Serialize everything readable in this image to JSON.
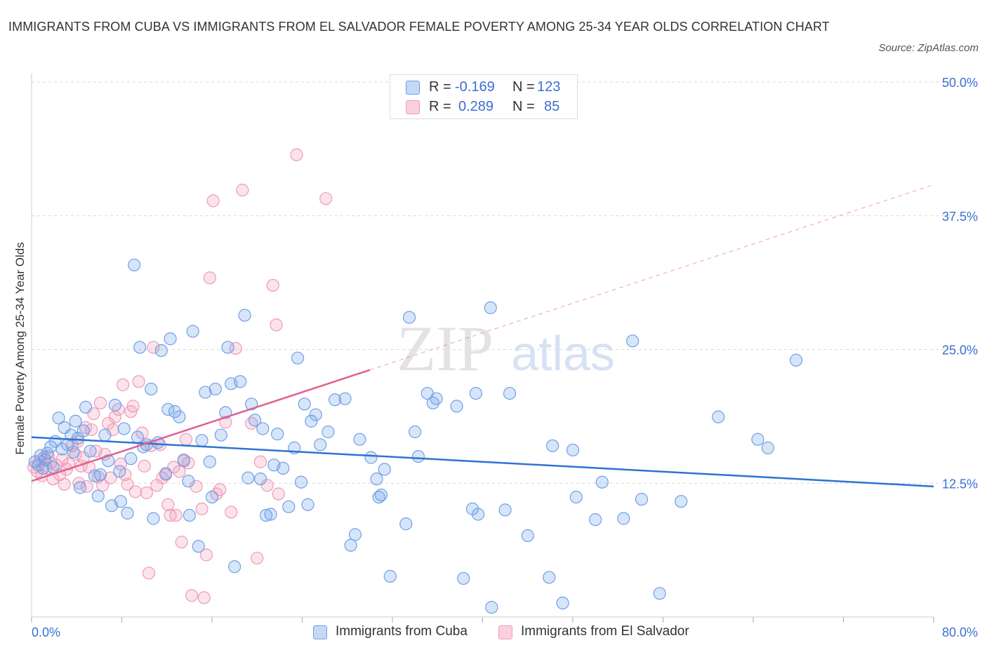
{
  "title": "IMMIGRANTS FROM CUBA VS IMMIGRANTS FROM EL SALVADOR FEMALE POVERTY AMONG 25-34 YEAR OLDS CORRELATION CHART",
  "source": "Source: ZipAtlas.com",
  "watermark": {
    "zip": "ZIP",
    "atlas": "atlas"
  },
  "legend": {
    "rows": [
      {
        "r_label": "R =",
        "r_value": "-0.169",
        "n_label": "N =",
        "n_value": "123",
        "color": "#6fa0e8"
      },
      {
        "r_label": "R =",
        "r_value": "0.289",
        "n_label": "N =",
        "n_value": "85",
        "color": "#ef9ab8"
      }
    ]
  },
  "colors": {
    "cuba": "#6fa0e8",
    "cuba_line": "#2f73d1",
    "salvador": "#ef9ab8",
    "salvador_line": "#e0608f",
    "axis_label": "#3b6fd0",
    "grid": "#d8d8d8"
  },
  "chart_data": {
    "type": "scatter",
    "xlabel": "",
    "ylabel": "Female Poverty Among 25-34 Year Olds",
    "xlim": [
      0,
      80
    ],
    "ylim": [
      0,
      50
    ],
    "x_tick_labels": {
      "left": "0.0%",
      "right": "80.0%"
    },
    "y_ticks": [
      12.5,
      25.0,
      37.5,
      50.0
    ],
    "y_tick_labels": [
      "12.5%",
      "25.0%",
      "37.5%",
      "50.0%"
    ],
    "grid": true,
    "series": [
      {
        "name": "Immigrants from Cuba",
        "color": "#6fa0e8",
        "trend": {
          "x": [
            0,
            80
          ],
          "y": [
            16.8,
            12.2
          ],
          "solid_to": 80
        },
        "points": [
          [
            0.3,
            14.5
          ],
          [
            0.6,
            14.2
          ],
          [
            0.8,
            15.1
          ],
          [
            1.0,
            13.9
          ],
          [
            1.2,
            14.7
          ],
          [
            1.4,
            15.3
          ],
          [
            1.7,
            15.9
          ],
          [
            1.9,
            14.0
          ],
          [
            2.1,
            16.4
          ],
          [
            2.4,
            18.6
          ],
          [
            2.7,
            15.7
          ],
          [
            2.9,
            17.7
          ],
          [
            3.2,
            16.1
          ],
          [
            3.5,
            17.0
          ],
          [
            3.7,
            15.4
          ],
          [
            3.9,
            18.3
          ],
          [
            4.1,
            16.7
          ],
          [
            4.3,
            12.1
          ],
          [
            4.6,
            17.4
          ],
          [
            4.8,
            19.6
          ],
          [
            5.2,
            15.5
          ],
          [
            5.6,
            13.2
          ],
          [
            5.9,
            11.3
          ],
          [
            6.1,
            13.3
          ],
          [
            6.5,
            17.0
          ],
          [
            6.8,
            14.6
          ],
          [
            7.1,
            10.4
          ],
          [
            7.4,
            19.8
          ],
          [
            7.8,
            13.6
          ],
          [
            7.9,
            10.8
          ],
          [
            8.2,
            17.6
          ],
          [
            8.5,
            9.7
          ],
          [
            8.8,
            14.8
          ],
          [
            9.1,
            32.9
          ],
          [
            9.4,
            16.8
          ],
          [
            9.6,
            25.2
          ],
          [
            9.9,
            15.9
          ],
          [
            10.2,
            16.1
          ],
          [
            10.6,
            21.3
          ],
          [
            10.8,
            9.2
          ],
          [
            11.2,
            16.3
          ],
          [
            11.5,
            24.9
          ],
          [
            11.9,
            13.4
          ],
          [
            12.1,
            19.4
          ],
          [
            12.3,
            26.0
          ],
          [
            12.7,
            19.2
          ],
          [
            13.1,
            18.7
          ],
          [
            13.5,
            14.6
          ],
          [
            13.9,
            12.7
          ],
          [
            14.0,
            9.5
          ],
          [
            14.3,
            26.7
          ],
          [
            14.8,
            6.6
          ],
          [
            15.1,
            16.5
          ],
          [
            15.4,
            21.0
          ],
          [
            15.8,
            14.5
          ],
          [
            16.0,
            11.2
          ],
          [
            16.3,
            21.3
          ],
          [
            16.8,
            17.0
          ],
          [
            17.2,
            19.1
          ],
          [
            17.4,
            25.2
          ],
          [
            17.7,
            21.8
          ],
          [
            18.0,
            4.7
          ],
          [
            18.5,
            22.0
          ],
          [
            18.9,
            28.2
          ],
          [
            19.2,
            13.0
          ],
          [
            19.5,
            19.9
          ],
          [
            19.8,
            18.4
          ],
          [
            20.3,
            12.9
          ],
          [
            20.5,
            17.6
          ],
          [
            20.8,
            9.5
          ],
          [
            21.2,
            9.6
          ],
          [
            21.5,
            14.2
          ],
          [
            21.8,
            17.1
          ],
          [
            22.3,
            13.9
          ],
          [
            22.8,
            10.3
          ],
          [
            23.3,
            15.8
          ],
          [
            23.6,
            24.2
          ],
          [
            23.9,
            12.6
          ],
          [
            24.2,
            19.9
          ],
          [
            24.5,
            10.5
          ],
          [
            24.8,
            18.3
          ],
          [
            25.2,
            18.9
          ],
          [
            25.6,
            16.1
          ],
          [
            26.3,
            17.3
          ],
          [
            26.9,
            20.3
          ],
          [
            27.8,
            20.4
          ],
          [
            28.3,
            6.7
          ],
          [
            28.7,
            7.7
          ],
          [
            29.1,
            16.6
          ],
          [
            30.1,
            14.9
          ],
          [
            30.6,
            12.9
          ],
          [
            30.8,
            11.2
          ],
          [
            31.0,
            11.4
          ],
          [
            31.3,
            13.8
          ],
          [
            31.8,
            3.8
          ],
          [
            33.2,
            8.7
          ],
          [
            33.5,
            28.0
          ],
          [
            34.0,
            17.3
          ],
          [
            34.3,
            15.0
          ],
          [
            35.1,
            20.9
          ],
          [
            35.6,
            20.0
          ],
          [
            35.9,
            20.4
          ],
          [
            37.7,
            19.7
          ],
          [
            38.3,
            3.6
          ],
          [
            39.1,
            10.1
          ],
          [
            39.4,
            20.9
          ],
          [
            39.6,
            9.6
          ],
          [
            40.7,
            28.9
          ],
          [
            40.8,
            0.9
          ],
          [
            42.0,
            10.0
          ],
          [
            42.4,
            20.9
          ],
          [
            44.0,
            7.6
          ],
          [
            45.9,
            3.7
          ],
          [
            46.2,
            16.0
          ],
          [
            47.1,
            1.3
          ],
          [
            48.0,
            15.6
          ],
          [
            48.3,
            11.2
          ],
          [
            50.0,
            9.1
          ],
          [
            50.6,
            12.6
          ],
          [
            52.5,
            9.2
          ],
          [
            53.3,
            25.8
          ],
          [
            54.1,
            11.0
          ],
          [
            55.7,
            2.2
          ],
          [
            57.6,
            10.8
          ],
          [
            60.9,
            18.7
          ],
          [
            64.4,
            16.6
          ],
          [
            65.3,
            15.8
          ],
          [
            67.8,
            24.0
          ]
        ]
      },
      {
        "name": "Immigrants from El Salvador",
        "color": "#ef9ab8",
        "trend": {
          "x": [
            0,
            80
          ],
          "y": [
            12.7,
            40.4
          ],
          "solid_to": 30
        },
        "points": [
          [
            0.2,
            14.0
          ],
          [
            0.5,
            13.6
          ],
          [
            0.7,
            14.6
          ],
          [
            0.9,
            13.2
          ],
          [
            1.1,
            14.9
          ],
          [
            1.3,
            13.9
          ],
          [
            1.5,
            15.0
          ],
          [
            1.7,
            14.4
          ],
          [
            1.9,
            12.9
          ],
          [
            2.2,
            14.2
          ],
          [
            2.5,
            13.3
          ],
          [
            2.7,
            14.7
          ],
          [
            2.9,
            12.4
          ],
          [
            3.1,
            13.8
          ],
          [
            3.3,
            14.3
          ],
          [
            3.6,
            16.0
          ],
          [
            3.9,
            15.2
          ],
          [
            4.1,
            16.4
          ],
          [
            4.2,
            12.5
          ],
          [
            4.4,
            14.1
          ],
          [
            4.6,
            14.9
          ],
          [
            4.8,
            17.7
          ],
          [
            4.9,
            12.2
          ],
          [
            5.1,
            14.0
          ],
          [
            5.3,
            17.5
          ],
          [
            5.5,
            19.0
          ],
          [
            5.7,
            15.5
          ],
          [
            5.9,
            13.1
          ],
          [
            6.1,
            20.0
          ],
          [
            6.3,
            12.3
          ],
          [
            6.5,
            15.2
          ],
          [
            6.8,
            18.1
          ],
          [
            7.0,
            13.0
          ],
          [
            7.2,
            17.5
          ],
          [
            7.4,
            18.7
          ],
          [
            7.7,
            19.4
          ],
          [
            7.9,
            14.3
          ],
          [
            8.1,
            21.7
          ],
          [
            8.3,
            13.3
          ],
          [
            8.5,
            12.4
          ],
          [
            8.8,
            19.2
          ],
          [
            9.0,
            19.7
          ],
          [
            9.2,
            11.7
          ],
          [
            9.5,
            22.0
          ],
          [
            9.8,
            17.2
          ],
          [
            10.0,
            14.1
          ],
          [
            10.2,
            11.6
          ],
          [
            10.4,
            4.1
          ],
          [
            10.6,
            16.0
          ],
          [
            10.8,
            25.2
          ],
          [
            11.1,
            12.3
          ],
          [
            11.4,
            16.1
          ],
          [
            11.6,
            13.0
          ],
          [
            11.9,
            13.3
          ],
          [
            12.1,
            10.5
          ],
          [
            12.3,
            9.5
          ],
          [
            12.6,
            14.0
          ],
          [
            12.8,
            9.5
          ],
          [
            13.1,
            13.6
          ],
          [
            13.3,
            7.0
          ],
          [
            13.5,
            14.7
          ],
          [
            13.7,
            16.6
          ],
          [
            13.9,
            14.4
          ],
          [
            14.2,
            2.0
          ],
          [
            14.6,
            12.2
          ],
          [
            15.1,
            10.1
          ],
          [
            15.3,
            1.8
          ],
          [
            15.5,
            5.8
          ],
          [
            15.8,
            31.7
          ],
          [
            16.1,
            38.9
          ],
          [
            16.4,
            11.5
          ],
          [
            16.7,
            11.9
          ],
          [
            17.2,
            18.2
          ],
          [
            17.7,
            9.8
          ],
          [
            18.1,
            25.1
          ],
          [
            18.7,
            39.9
          ],
          [
            19.5,
            18.1
          ],
          [
            20.0,
            5.5
          ],
          [
            20.3,
            14.5
          ],
          [
            20.9,
            12.3
          ],
          [
            21.4,
            31.0
          ],
          [
            21.7,
            27.3
          ],
          [
            21.9,
            11.5
          ],
          [
            23.5,
            43.2
          ],
          [
            26.1,
            39.1
          ]
        ]
      }
    ]
  },
  "bottom_legend": [
    {
      "label": "Immigrants from Cuba",
      "color": "#6fa0e8"
    },
    {
      "label": "Immigrants from El Salvador",
      "color": "#ef9ab8"
    }
  ]
}
